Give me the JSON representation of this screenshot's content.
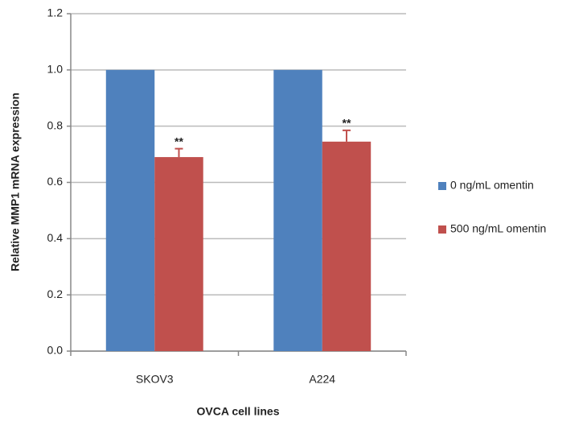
{
  "chart_data": {
    "type": "bar",
    "y_label": "Relative MMP1 mRNA expression",
    "x_label": "OVCA cell lines",
    "categories": [
      "SKOV3",
      "A224"
    ],
    "series": [
      {
        "name": "0 ng/mL omentin",
        "color": "#4f81bd",
        "values": [
          1.0,
          1.0
        ]
      },
      {
        "name": "500 ng/mL omentin",
        "color": "#c0504d",
        "values": [
          0.69,
          0.745
        ],
        "errors": [
          0.03,
          0.04
        ],
        "significance": [
          "**",
          "**"
        ]
      }
    ],
    "ylim": [
      0,
      1.2
    ],
    "yticks": [
      {
        "value": 0,
        "label": "0.0"
      },
      0.2,
      0.4,
      0.6,
      0.8,
      {
        "value": 1.0,
        "label": "1.0"
      },
      1.2
    ],
    "grid": true,
    "legend": "right"
  }
}
